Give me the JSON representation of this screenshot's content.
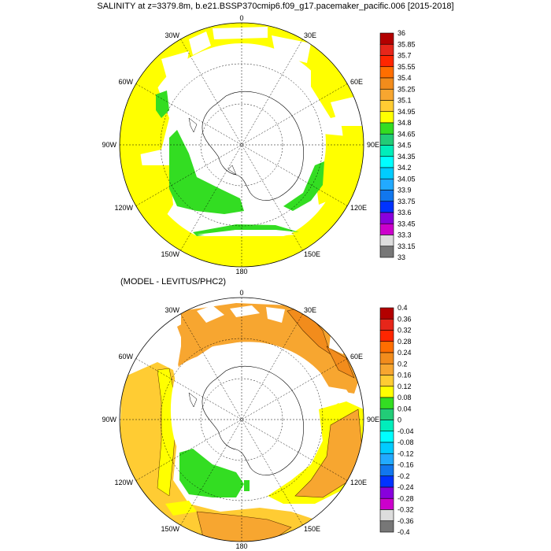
{
  "title": "SALINITY at z=3379.8m, b.e21.BSSP370cmip6.f09_g17.pacemaker_pacific.006 [2015-2018]",
  "panel2_title": "(MODEL - LEVITUS/PHC2)",
  "longitude_labels": [
    "0",
    "30E",
    "60E",
    "90E",
    "120E",
    "150E",
    "180",
    "150W",
    "120W",
    "90W",
    "60W",
    "30W"
  ],
  "top_map": {
    "colorbar": {
      "labels": [
        "36",
        "35.85",
        "35.7",
        "35.55",
        "35.4",
        "35.25",
        "35.1",
        "34.95",
        "34.8",
        "34.65",
        "34.5",
        "34.35",
        "34.2",
        "34.05",
        "33.9",
        "33.75",
        "33.6",
        "33.45",
        "33.3",
        "33.15",
        "33"
      ],
      "colors": [
        "#b30000",
        "#e6261a",
        "#ff2600",
        "#ff6e00",
        "#f28c1c",
        "#f7a630",
        "#ffcc33",
        "#ffff00",
        "#33dd22",
        "#22cc77",
        "#00eebb",
        "#00ffff",
        "#00ccff",
        "#22aaff",
        "#1177ee",
        "#0033ff",
        "#8800dd",
        "#cc00cc",
        "#dddddd",
        "#777777"
      ]
    }
  },
  "bottom_map": {
    "colorbar": {
      "labels": [
        "0.4",
        "0.36",
        "0.32",
        "0.28",
        "0.24",
        "0.2",
        "0.16",
        "0.12",
        "0.08",
        "0.04",
        "0",
        "-0.04",
        "-0.08",
        "-0.12",
        "-0.16",
        "-0.2",
        "-0.24",
        "-0.28",
        "-0.32",
        "-0.36",
        "-0.4"
      ],
      "colors": [
        "#b30000",
        "#e6261a",
        "#ff2600",
        "#ff6e00",
        "#f28c1c",
        "#f7a630",
        "#ffcc33",
        "#ffff00",
        "#33dd22",
        "#22cc77",
        "#00eebb",
        "#00ffff",
        "#00ccff",
        "#22aaff",
        "#1177ee",
        "#0033ff",
        "#8800dd",
        "#cc00cc",
        "#dddddd",
        "#777777"
      ]
    }
  }
}
